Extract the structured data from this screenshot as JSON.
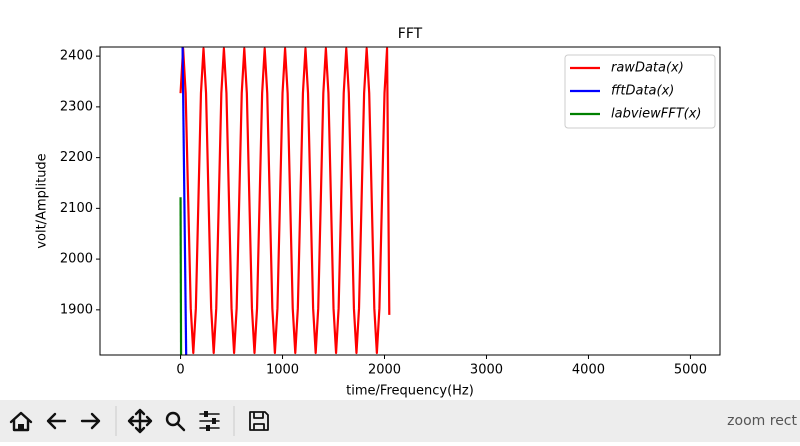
{
  "chart_data": {
    "type": "line",
    "title": "FFT",
    "x_label": "time/Frequency(Hz)",
    "y_label": "volt/Amplitude",
    "xlim": [
      -790,
      5290
    ],
    "ylim": [
      1811,
      2418
    ],
    "xticks": [
      0,
      1000,
      2000,
      3000,
      4000,
      5000
    ],
    "yticks": [
      1900,
      2000,
      2100,
      2200,
      2300,
      2400
    ],
    "legend": "upper right",
    "series": [
      {
        "name": "rawData(x)",
        "color": "#ff0000",
        "x": [
          0,
          25,
          50,
          75,
          100,
          125,
          150,
          175,
          200,
          225,
          250,
          275,
          300,
          325,
          350,
          375,
          400,
          425,
          450,
          475,
          500,
          525,
          550,
          575,
          600,
          625,
          650,
          675,
          700,
          725,
          750,
          775,
          800,
          825,
          850,
          875,
          900,
          925,
          950,
          975,
          1000,
          1025,
          1050,
          1075,
          1100,
          1125,
          1150,
          1175,
          1200,
          1225,
          1250,
          1275,
          1300,
          1325,
          1350,
          1375,
          1400,
          1425,
          1450,
          1475,
          1500,
          1525,
          1550,
          1575,
          1600,
          1625,
          1650,
          1675,
          1700,
          1725,
          1750,
          1775,
          1800,
          1825,
          1850,
          1875,
          1900,
          1925,
          1950,
          1975,
          2000,
          2025,
          2047
        ],
        "values": [
          2327,
          2415,
          2327,
          2115,
          1903,
          1815,
          1903,
          2115,
          2327,
          2415,
          2327,
          2115,
          1903,
          1815,
          1903,
          2115,
          2327,
          2415,
          2327,
          2115,
          1903,
          1815,
          1903,
          2115,
          2327,
          2415,
          2327,
          2115,
          1903,
          1815,
          1903,
          2115,
          2327,
          2415,
          2327,
          2115,
          1903,
          1815,
          1903,
          2115,
          2327,
          2415,
          2327,
          2115,
          1903,
          1815,
          1903,
          2115,
          2327,
          2415,
          2327,
          2115,
          1903,
          1815,
          1903,
          2115,
          2327,
          2415,
          2327,
          2115,
          1903,
          1815,
          1903,
          2115,
          2327,
          2415,
          2327,
          2115,
          1903,
          1815,
          1903,
          2115,
          2327,
          2415,
          2327,
          2115,
          1903,
          1815,
          1903,
          2115,
          2327,
          2415,
          1890
        ]
      },
      {
        "name": "fftData(x)",
        "color": "#0000ff",
        "x": [
          20,
          55
        ],
        "values": [
          2418,
          1811
        ]
      },
      {
        "name": "labviewFFT(x)",
        "color": "#008000",
        "x": [
          0,
          5
        ],
        "values": [
          2122,
          1811
        ]
      }
    ]
  },
  "toolbar": {
    "status": "zoom rect"
  }
}
